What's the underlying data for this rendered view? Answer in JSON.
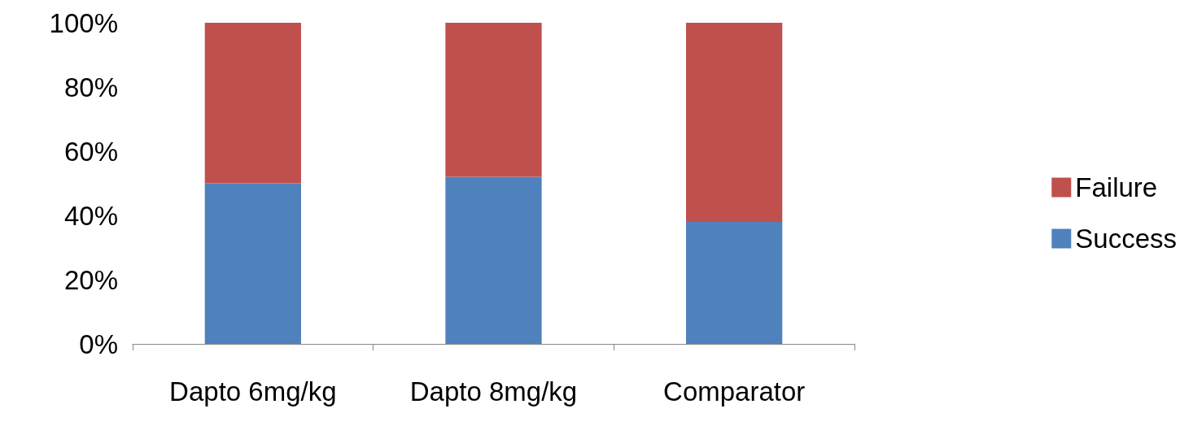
{
  "chart_data": {
    "type": "bar",
    "stacked": true,
    "categories": [
      "Dapto 6mg/kg",
      "Dapto 8mg/kg",
      "Comparator"
    ],
    "series": [
      {
        "name": "Success",
        "color": "#4f81bd",
        "values": [
          50,
          52,
          38
        ]
      },
      {
        "name": "Failure",
        "color": "#c0504d",
        "values": [
          50,
          48,
          62
        ]
      }
    ],
    "ylim": [
      0,
      100
    ],
    "yticks": [
      {
        "value": 0,
        "label": "0%"
      },
      {
        "value": 20,
        "label": "20%"
      },
      {
        "value": 40,
        "label": "40%"
      },
      {
        "value": 60,
        "label": "60%"
      },
      {
        "value": 80,
        "label": "80%"
      },
      {
        "value": 100,
        "label": "100%"
      }
    ],
    "grid": false,
    "legend": "right"
  }
}
